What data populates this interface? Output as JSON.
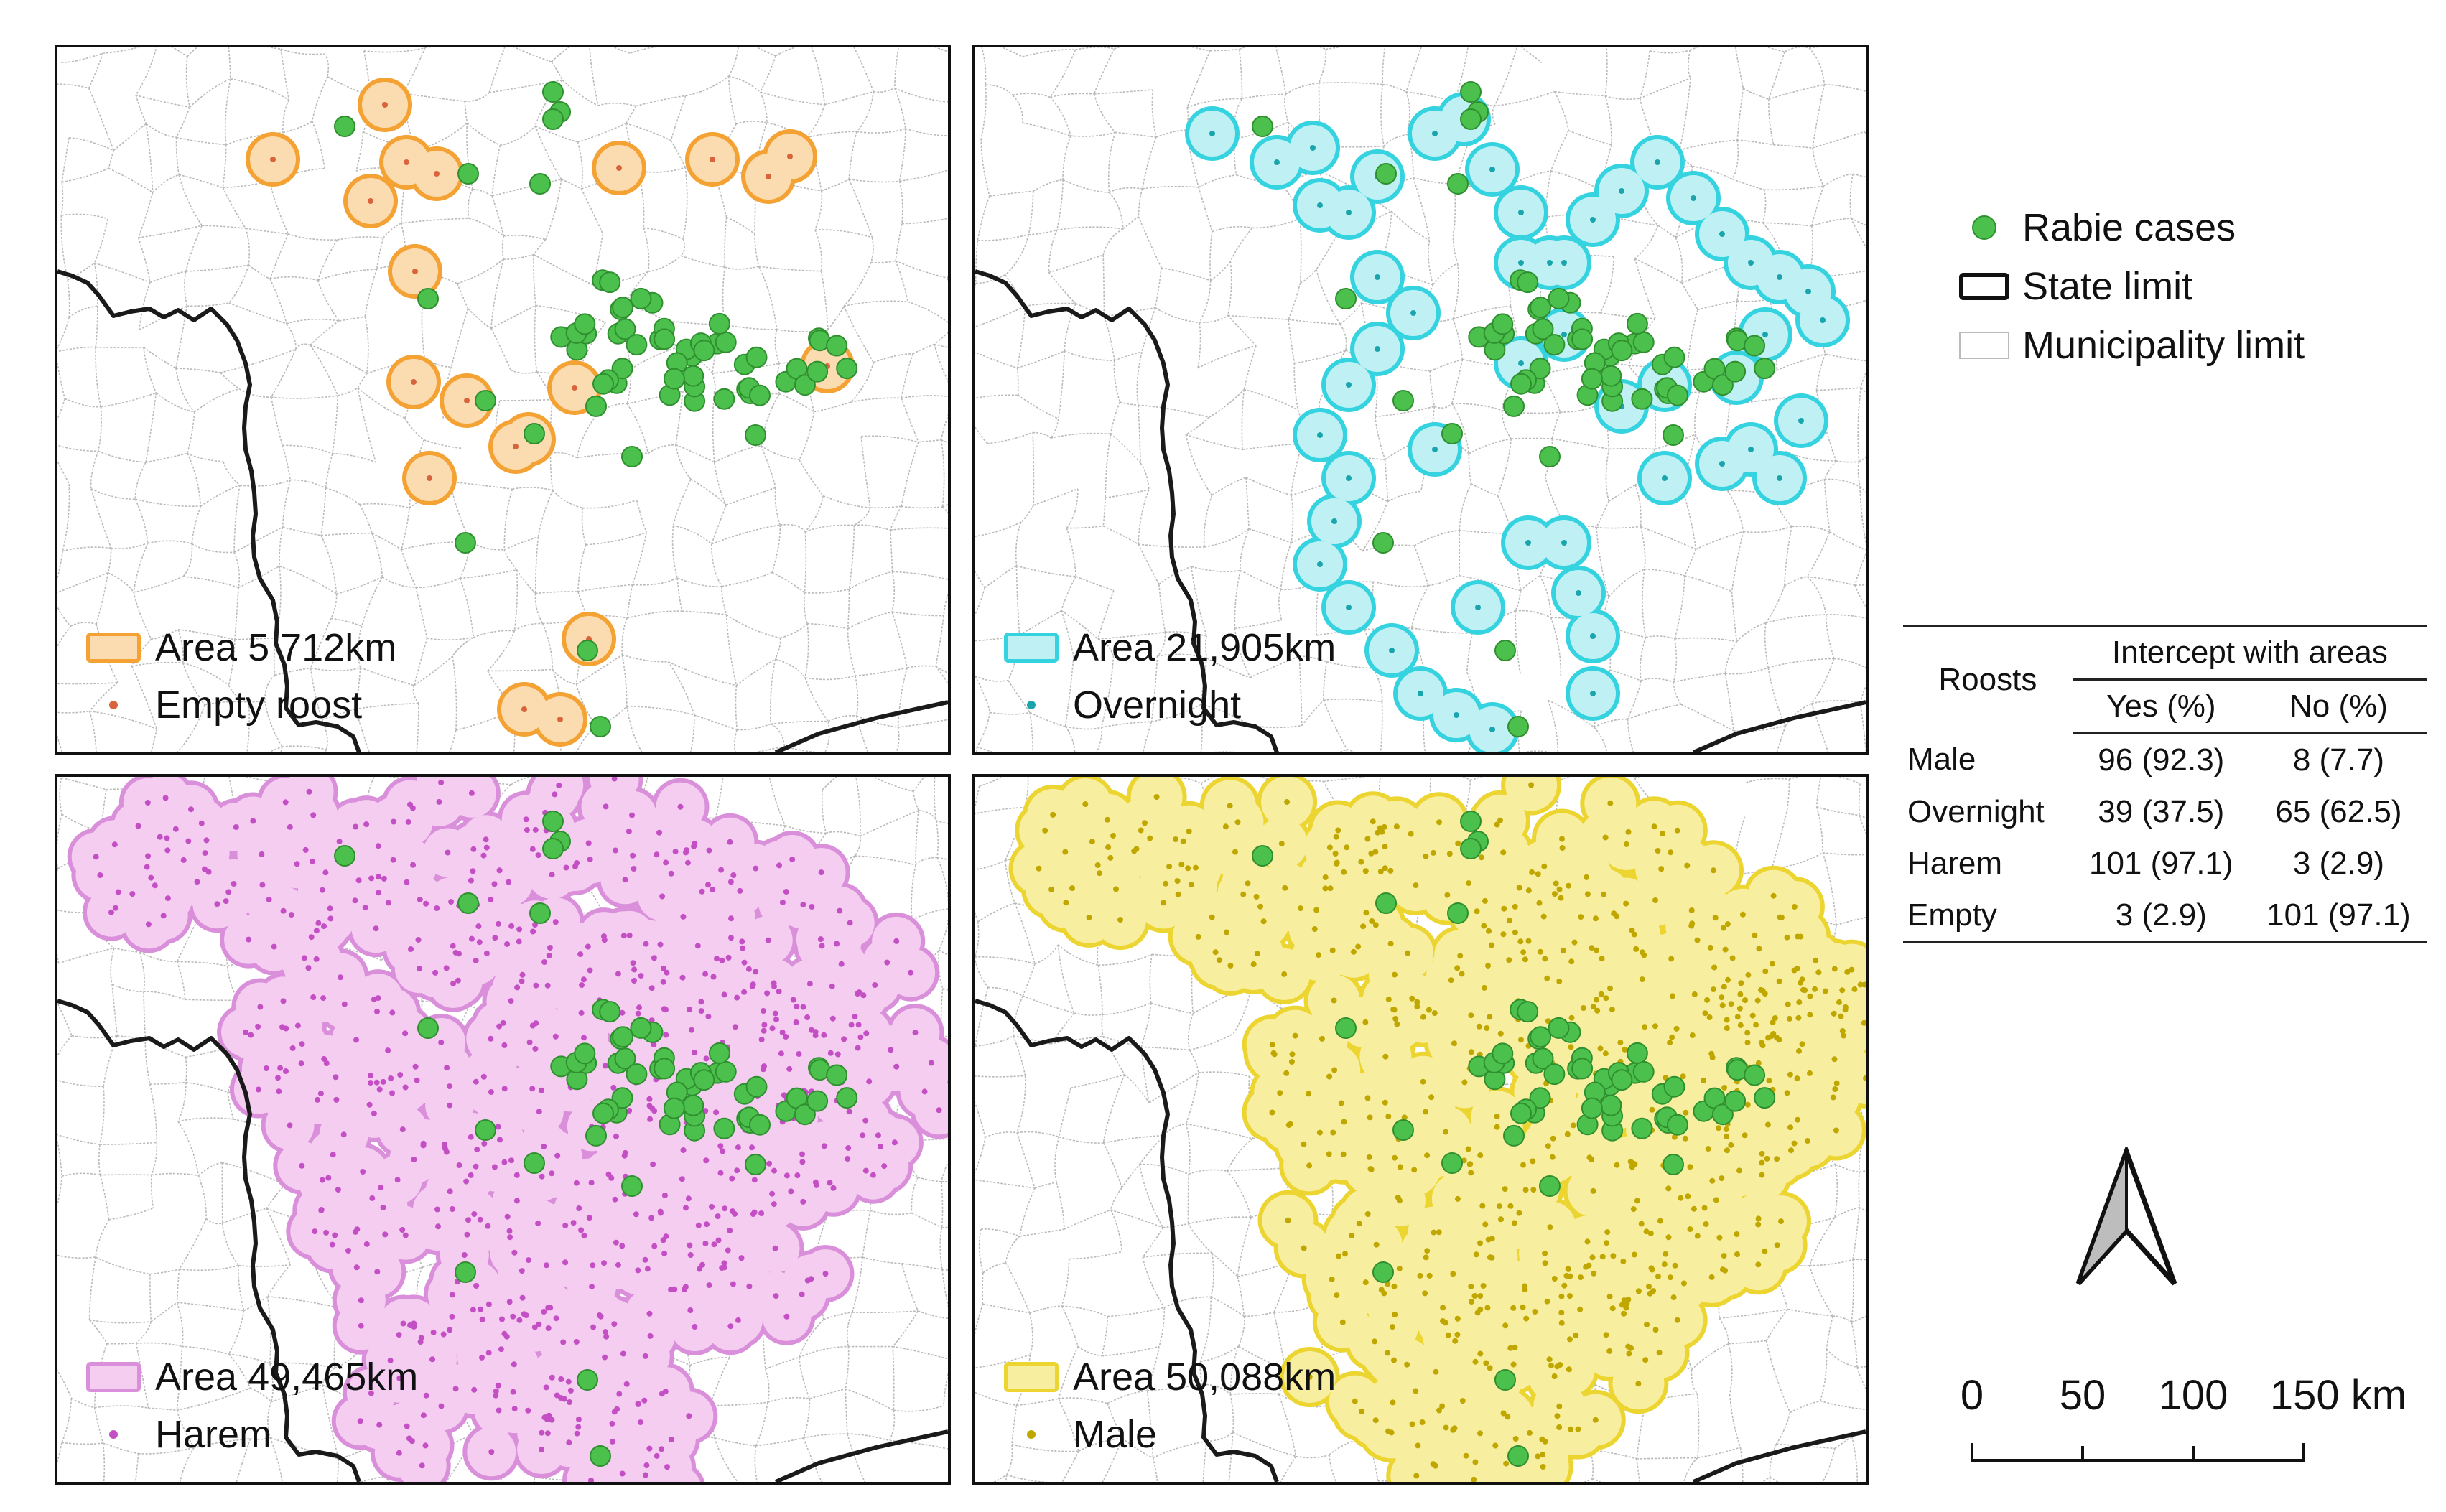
{
  "colors": {
    "case_fill": "#4cc04c",
    "case_stroke": "#2f8f2f",
    "empty": {
      "stroke": "#f3a233",
      "fill": "#fbdcb0",
      "dot": "#d9643c"
    },
    "overnight": {
      "stroke": "#35d3df",
      "fill": "#bff1f4",
      "dot": "#1aa5ad"
    },
    "harem": {
      "stroke": "#d98fd9",
      "fill": "#f4cdf1",
      "dot": "#c44fc4"
    },
    "male": {
      "stroke": "#ecd530",
      "fill": "#f8eea0",
      "dot": "#bfa700"
    }
  },
  "panels": [
    {
      "id": "empty",
      "area_label": "Area 5 712km",
      "roost_label": "Empty roost"
    },
    {
      "id": "overnight",
      "area_label": "Area 21,905km",
      "roost_label": "Overnight"
    },
    {
      "id": "harem",
      "area_label": "Area 49,465km",
      "roost_label": "Harem"
    },
    {
      "id": "male",
      "area_label": "Area 50,088km",
      "roost_label": "Male"
    }
  ],
  "legend": {
    "rabies": "Rabie cases",
    "state": "State limit",
    "municipality": "Municipality limit"
  },
  "table": {
    "row_header": "Roosts",
    "group_header": "Intercept with areas",
    "col_yes": "Yes (%)",
    "col_no": "No (%)",
    "rows": [
      {
        "label": "Male",
        "yes": "96 (92.3)",
        "no": "8 (7.7)"
      },
      {
        "label": "Overnight",
        "yes": "39 (37.5)",
        "no": "65 (62.5)"
      },
      {
        "label": "Harem",
        "yes": "101 (97.1)",
        "no": "3 (2.9)"
      },
      {
        "label": "Empty",
        "yes": "3 (2.9)",
        "no": "101 (97.1)"
      }
    ]
  },
  "scale": {
    "t0": "0",
    "t1": "50",
    "t2": "100",
    "t3": "150 km"
  }
}
